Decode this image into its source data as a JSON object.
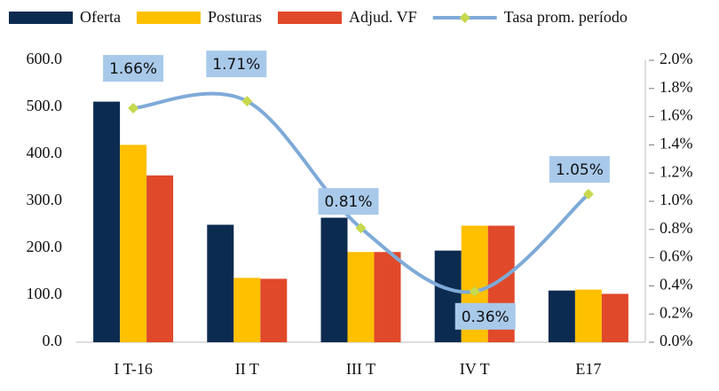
{
  "chart_data": {
    "type": "bar_line",
    "categories": [
      "I T-16",
      "II T",
      "III T",
      "IV T",
      "E17"
    ],
    "series": [
      {
        "name": "Oferta",
        "color": "#0c2b50",
        "values": [
          512,
          250,
          265,
          195,
          110
        ]
      },
      {
        "name": "Posturas",
        "color": "#ffc000",
        "values": [
          420,
          137,
          192,
          248,
          112
        ]
      },
      {
        "name": "Adjud.  VF",
        "color": "#e0492a",
        "values": [
          355,
          135,
          192,
          248,
          103
        ]
      },
      {
        "name": "Tasa prom. período",
        "color": "#7eaad8",
        "marker_color": "#c7d94e",
        "axis": "y2",
        "type": "line",
        "values": [
          1.66,
          1.71,
          0.81,
          0.36,
          1.05
        ],
        "value_labels": [
          "1.66%",
          "1.71%",
          "0.81%",
          "0.36%",
          "1.05%"
        ]
      }
    ],
    "ylim": [
      0,
      600
    ],
    "yticks": [
      {
        "value": 0,
        "label": "0.0"
      },
      {
        "value": 100,
        "label": "100.0"
      },
      {
        "value": 200,
        "label": "200.0"
      },
      {
        "value": 300,
        "label": "300.0"
      },
      {
        "value": 400,
        "label": "400.0"
      },
      {
        "value": 500,
        "label": "500.0"
      },
      {
        "value": 600,
        "label": "600.0"
      }
    ],
    "y2lim": [
      0,
      2.0
    ],
    "y2ticks": [
      {
        "value": 0,
        "label": "0.0%"
      },
      {
        "value": 0.2,
        "label": "0.2%"
      },
      {
        "value": 0.4,
        "label": "0.4%"
      },
      {
        "value": 0.6,
        "label": "0.6%"
      },
      {
        "value": 0.8,
        "label": "0.8%"
      },
      {
        "value": 1.0,
        "label": "1.0%"
      },
      {
        "value": 1.2,
        "label": "1.2%"
      },
      {
        "value": 1.4,
        "label": "1.4%"
      },
      {
        "value": 1.6,
        "label": "1.6%"
      },
      {
        "value": 1.8,
        "label": "1.8%"
      },
      {
        "value": 2.0,
        "label": "2.0%"
      }
    ],
    "legend": "top"
  }
}
